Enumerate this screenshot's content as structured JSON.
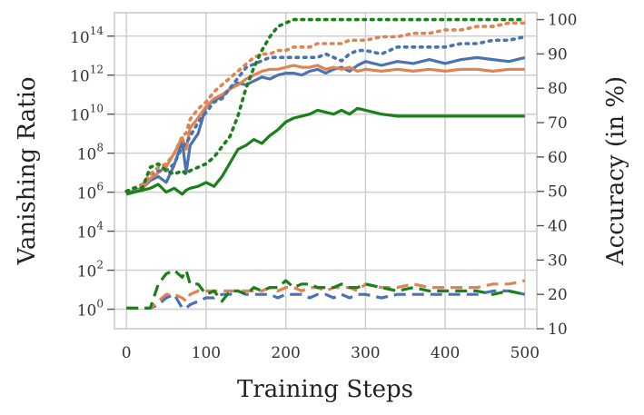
{
  "chart_data": {
    "type": "line",
    "title": "",
    "xlabel": "Training Steps",
    "ylabel_left": "Vanishing Ratio",
    "ylabel_right": "Accuracy (in %)",
    "left_axis_scale": "log10",
    "xlim": [
      -15,
      515
    ],
    "ylim_left_log10": [
      -1,
      15.2
    ],
    "ylim_right": [
      10,
      102
    ],
    "x_ticks": [
      0,
      100,
      200,
      300,
      400,
      500
    ],
    "left_ticks": [
      {
        "exp": 0,
        "base": "10",
        "sup": "0"
      },
      {
        "exp": 2,
        "base": "10",
        "sup": "2"
      },
      {
        "exp": 4,
        "base": "10",
        "sup": "4"
      },
      {
        "exp": 6,
        "base": "10",
        "sup": "6"
      },
      {
        "exp": 8,
        "base": "10",
        "sup": "8"
      },
      {
        "exp": 10,
        "base": "10",
        "sup": "10"
      },
      {
        "exp": 12,
        "base": "10",
        "sup": "12"
      },
      {
        "exp": 14,
        "base": "10",
        "sup": "14"
      }
    ],
    "right_ticks": [
      10,
      20,
      30,
      40,
      50,
      60,
      70,
      80,
      90,
      100
    ],
    "grid": true,
    "legend": "none",
    "x": [
      0,
      10,
      20,
      30,
      40,
      50,
      60,
      70,
      75,
      80,
      90,
      100,
      110,
      120,
      130,
      140,
      150,
      160,
      170,
      180,
      190,
      200,
      210,
      220,
      230,
      240,
      250,
      260,
      270,
      280,
      290,
      300,
      320,
      340,
      360,
      380,
      400,
      420,
      440,
      460,
      480,
      500
    ],
    "series": [
      {
        "kind": "vanishing_ratio_log10",
        "axis": "left",
        "color": "#4c72b0",
        "dash": "solid",
        "values": [
          5.9,
          6.1,
          6.2,
          6.6,
          6.8,
          6.5,
          7.4,
          8.6,
          7.0,
          8.4,
          9.0,
          10.4,
          10.7,
          10.9,
          11.3,
          11.6,
          11.5,
          11.7,
          11.9,
          11.8,
          12.0,
          12.1,
          12.1,
          12.0,
          12.2,
          12.3,
          12.1,
          12.3,
          12.4,
          12.2,
          12.5,
          12.7,
          12.5,
          12.7,
          12.6,
          12.8,
          12.6,
          12.8,
          12.9,
          12.8,
          12.7,
          12.9
        ]
      },
      {
        "kind": "vanishing_ratio_log10",
        "axis": "left",
        "color": "#dd8452",
        "dash": "solid",
        "values": [
          5.9,
          6.0,
          6.2,
          6.7,
          7.0,
          7.3,
          8.0,
          8.8,
          8.2,
          9.3,
          9.8,
          10.4,
          10.8,
          11.0,
          11.3,
          11.5,
          11.8,
          12.0,
          12.2,
          12.3,
          12.3,
          12.4,
          12.5,
          12.4,
          12.4,
          12.5,
          12.3,
          12.4,
          12.3,
          12.4,
          12.2,
          12.3,
          12.2,
          12.3,
          12.2,
          12.3,
          12.2,
          12.3,
          12.3,
          12.2,
          12.3,
          12.3
        ]
      },
      {
        "kind": "vanishing_ratio_log10",
        "axis": "left",
        "color": "#1a801a",
        "dash": "solid",
        "values": [
          5.9,
          6.0,
          6.1,
          6.2,
          6.4,
          6.0,
          6.2,
          5.9,
          6.1,
          6.2,
          6.3,
          6.5,
          6.3,
          6.8,
          7.5,
          8.2,
          8.4,
          8.7,
          8.5,
          8.9,
          9.2,
          9.6,
          9.8,
          9.9,
          10.0,
          10.2,
          10.1,
          10.0,
          10.2,
          10.0,
          10.3,
          10.2,
          10.0,
          9.9,
          9.9,
          9.9,
          9.9,
          9.9,
          9.9,
          9.9,
          9.9,
          9.9
        ]
      },
      {
        "kind": "accuracy_percent",
        "axis": "right",
        "color": "#4c72b0",
        "dash": "dotted",
        "values": [
          50,
          51,
          52,
          55,
          56,
          56,
          58,
          63,
          64,
          66,
          70,
          73,
          76,
          77,
          80,
          83,
          86,
          87,
          88,
          89,
          89,
          89,
          89,
          89,
          89,
          89,
          90,
          89,
          88,
          90,
          91,
          91,
          90,
          92,
          92,
          92,
          92,
          93,
          93,
          94,
          94,
          95
        ]
      },
      {
        "kind": "accuracy_percent",
        "axis": "right",
        "color": "#dd8452",
        "dash": "dotted",
        "values": [
          50,
          51,
          52,
          55,
          57,
          58,
          61,
          66,
          67,
          71,
          74,
          76,
          79,
          81,
          83,
          85,
          87,
          89,
          90,
          90,
          91,
          91,
          92,
          92,
          92,
          93,
          93,
          93,
          93,
          94,
          94,
          94,
          95,
          95,
          96,
          96,
          97,
          97,
          98,
          98,
          99,
          99
        ]
      },
      {
        "kind": "accuracy_percent",
        "axis": "right",
        "color": "#1a801a",
        "dash": "dotted",
        "values": [
          50,
          51,
          51,
          57,
          58,
          56,
          55,
          56,
          55,
          56,
          57,
          58,
          60,
          63,
          66,
          72,
          80,
          86,
          91,
          95,
          98,
          99,
          100,
          100,
          100,
          100,
          100,
          100,
          100,
          100,
          100,
          100,
          100,
          100,
          100,
          100,
          100,
          100,
          100,
          100,
          100,
          100
        ]
      },
      {
        "kind": "accuracy_percent",
        "axis": "right",
        "color": "#4c72b0",
        "dash": "dashed",
        "values": [
          16,
          16,
          16,
          16,
          17,
          19,
          20,
          16,
          16,
          17,
          18,
          19,
          19,
          20,
          20,
          21,
          20,
          20,
          20,
          20,
          19,
          20,
          20,
          20,
          19,
          20,
          20,
          19,
          20,
          19,
          20,
          20,
          19,
          20,
          20,
          20,
          20,
          20,
          20,
          21,
          21,
          20
        ]
      },
      {
        "kind": "accuracy_percent",
        "axis": "right",
        "color": "#dd8452",
        "dash": "dashed",
        "values": [
          16,
          16,
          16,
          16,
          18,
          20,
          20,
          19,
          18,
          20,
          21,
          21,
          21,
          21,
          21,
          21,
          21,
          21,
          21,
          22,
          21,
          22,
          22,
          21,
          22,
          22,
          21,
          22,
          22,
          22,
          21,
          23,
          22,
          22,
          23,
          22,
          22,
          22,
          22,
          23,
          23,
          24
        ]
      },
      {
        "kind": "accuracy_percent",
        "axis": "right",
        "color": "#1a801a",
        "dash": "dashed",
        "values": [
          16,
          16,
          16,
          16,
          23,
          26,
          27,
          25,
          27,
          23,
          23,
          20,
          21,
          18,
          21,
          21,
          20,
          22,
          21,
          22,
          22,
          24,
          22,
          23,
          23,
          22,
          22,
          22,
          23,
          22,
          22,
          23,
          22,
          21,
          22,
          21,
          21,
          21,
          21,
          20,
          21,
          20
        ]
      }
    ]
  }
}
